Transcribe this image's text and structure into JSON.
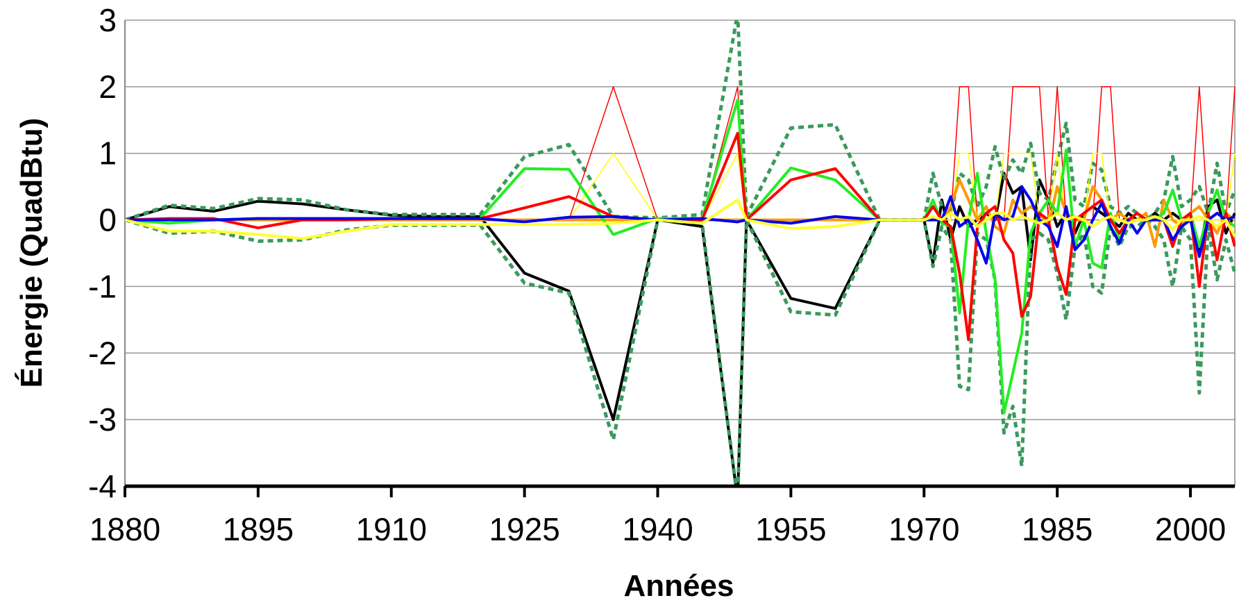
{
  "chart_data": {
    "type": "line",
    "x_label": "Années",
    "y_label": "Énergie (QuadBtu)",
    "x": [
      1880,
      1885,
      1890,
      1895,
      1900,
      1905,
      1910,
      1915,
      1920,
      1925,
      1930,
      1935,
      1940,
      1945,
      1949,
      1950,
      1955,
      1960,
      1965,
      1970,
      1971,
      1972,
      1973,
      1974,
      1975,
      1976,
      1977,
      1978,
      1979,
      1980,
      1981,
      1982,
      1983,
      1984,
      1985,
      1986,
      1987,
      1988,
      1989,
      1990,
      1991,
      1992,
      1993,
      1994,
      1995,
      1996,
      1997,
      1998,
      1999,
      2000,
      2001,
      2002,
      2003,
      2004,
      2005
    ],
    "xlim": [
      1880,
      2005
    ],
    "xticks": [
      1880,
      1895,
      1910,
      1925,
      1940,
      1955,
      1970,
      1985,
      2000
    ],
    "ylim": [
      -4,
      3
    ],
    "yticks": [
      -4,
      -3,
      -2,
      -1,
      0,
      1,
      2,
      3
    ],
    "grid": true,
    "series": [
      {
        "color": "#000000",
        "width": 4,
        "values": [
          0,
          0.2,
          0.13,
          0.28,
          0.24,
          0.15,
          0.07,
          0.05,
          0.05,
          -0.8,
          -1.07,
          -3.0,
          0,
          -0.1,
          -4.2,
          0,
          -1.18,
          -1.33,
          0,
          0,
          -0.65,
          0.3,
          -0.3,
          0.2,
          -0.1,
          0,
          0.1,
          0,
          0.7,
          0.4,
          0.5,
          -0.6,
          0.6,
          0.3,
          -0.1,
          0.1,
          -0.2,
          0.1,
          0.2,
          0.1,
          0,
          -0.1,
          0.1,
          0,
          0,
          0.1,
          0,
          0.1,
          0,
          0.1,
          -0.5,
          0.2,
          0.3,
          -0.2,
          0.1
        ]
      },
      {
        "color": "#3a9a5c",
        "width": 5,
        "dash": "dotted",
        "values": [
          0,
          0.22,
          0.17,
          0.32,
          0.3,
          0.15,
          0.08,
          0.08,
          0.08,
          0.95,
          1.13,
          0.05,
          0.03,
          0.08,
          3.1,
          0.05,
          1.38,
          1.43,
          0,
          0,
          0.7,
          0.2,
          0.1,
          0.7,
          0.6,
          0.2,
          0.5,
          1.1,
          0.6,
          0.9,
          0.7,
          1.15,
          0.4,
          0.3,
          0.9,
          1.45,
          0.3,
          0.2,
          0.85,
          0.75,
          0.2,
          0.1,
          0.2,
          0.1,
          0,
          0.1,
          0.3,
          0.95,
          0.2,
          0.3,
          0.5,
          0.1,
          0.85,
          0.1,
          0.45
        ]
      },
      {
        "color": "#3a9a5c",
        "width": 5,
        "dash": "dotted",
        "values": [
          0,
          -0.2,
          -0.17,
          -0.32,
          -0.3,
          -0.15,
          -0.08,
          -0.08,
          -0.08,
          -0.95,
          -1.1,
          -3.3,
          0,
          -0.05,
          -4.2,
          0,
          -1.38,
          -1.43,
          0,
          0,
          -0.7,
          -0.1,
          -0.3,
          -2.5,
          -2.55,
          -0.2,
          -0.3,
          -0.9,
          -3.2,
          -2.8,
          -3.7,
          -0.3,
          -0.2,
          -0.3,
          -0.8,
          -1.5,
          -0.4,
          -0.2,
          -1.0,
          -1.1,
          -0.1,
          -0.4,
          -0.1,
          -0.1,
          0,
          -0.1,
          -0.3,
          -1.0,
          -0.1,
          -0.3,
          -2.6,
          -0.1,
          -0.9,
          -0.3,
          -0.8
        ]
      },
      {
        "color": "#ff0000",
        "width": 1.5,
        "values": [
          0,
          0,
          0,
          0,
          0,
          0,
          0,
          0,
          0,
          0,
          0,
          2,
          0,
          0,
          2,
          0,
          0,
          0,
          0,
          0,
          0,
          0,
          0,
          2,
          2,
          0,
          0,
          0,
          0,
          2,
          2,
          2,
          2,
          0,
          2,
          0,
          0,
          0,
          0,
          2,
          2,
          0,
          0,
          0,
          0,
          0,
          0,
          0,
          0,
          0,
          2,
          0,
          0,
          0,
          2
        ]
      },
      {
        "color": "#ffff00",
        "width": 1.5,
        "values": [
          0,
          0,
          0,
          0,
          0,
          0,
          0,
          0,
          0,
          0,
          0,
          1,
          0,
          0,
          1,
          0,
          0,
          0,
          0,
          0,
          0,
          0,
          0,
          1,
          1,
          0,
          0,
          0,
          1,
          1,
          1,
          1,
          0,
          0,
          1,
          0,
          0,
          0,
          1,
          1,
          0,
          0,
          0,
          0,
          0,
          0,
          0,
          0,
          0,
          0,
          0,
          0,
          0,
          0,
          1
        ]
      },
      {
        "color": "#ff9900",
        "width": 4,
        "values": [
          0,
          0,
          0,
          0,
          0,
          0,
          0,
          0,
          0,
          0,
          0,
          0,
          0,
          0,
          0,
          0,
          0,
          0,
          0,
          0,
          0,
          0,
          0.2,
          0.6,
          0.3,
          0,
          0.2,
          -0.1,
          -0.2,
          0.3,
          0.1,
          0.2,
          0.1,
          -0.1,
          0.5,
          0.1,
          0,
          0,
          0.5,
          0.3,
          0,
          0.1,
          0,
          0,
          0.1,
          -0.4,
          0.3,
          0,
          -0.1,
          0.1,
          0.2,
          0,
          -0.2,
          0.1,
          0
        ]
      },
      {
        "color": "#22ee22",
        "width": 4,
        "values": [
          0,
          -0.05,
          0,
          0.02,
          0.02,
          0.02,
          0.02,
          0.02,
          0.02,
          0.77,
          0.76,
          -0.22,
          0.02,
          0.02,
          1.8,
          0,
          0.78,
          0.6,
          0,
          0,
          0.3,
          -0.05,
          -0.1,
          -1.4,
          0,
          0.7,
          -0.2,
          -0.9,
          -2.9,
          -2.3,
          -1.7,
          -0.2,
          0.1,
          0.3,
          0.1,
          1.05,
          -0.4,
          0,
          -0.65,
          -0.72,
          0.1,
          -0.3,
          0,
          0.1,
          0,
          0,
          0.1,
          0.45,
          0,
          0.1,
          -0.4,
          0.1,
          0.45,
          0,
          -0.1
        ]
      },
      {
        "color": "#ff0000",
        "width": 4,
        "values": [
          0,
          0.02,
          0.02,
          -0.12,
          0,
          0,
          0.02,
          0.02,
          0.02,
          0.18,
          0.35,
          0.05,
          0,
          0,
          1.3,
          0,
          0.6,
          0.77,
          0,
          0,
          0.2,
          0,
          -0.1,
          -0.8,
          -1.8,
          -0.1,
          0.1,
          0.2,
          -0.3,
          -0.5,
          -1.45,
          -1.15,
          0.1,
          0,
          -0.7,
          -1.12,
          0,
          0.1,
          0.2,
          0.3,
          0,
          -0.2,
          0,
          0.1,
          0,
          0,
          0,
          -0.4,
          0,
          0.1,
          -1.0,
          0.1,
          -0.6,
          0.1,
          -0.4
        ]
      },
      {
        "color": "#0000ee",
        "width": 4,
        "values": [
          0,
          0,
          0,
          0.02,
          0.02,
          0.02,
          0.02,
          0.02,
          0.02,
          -0.03,
          0.04,
          0.05,
          0,
          0.02,
          -0.03,
          0,
          -0.05,
          0.05,
          0,
          0,
          0,
          0,
          0.35,
          -0.1,
          0,
          -0.3,
          -0.65,
          0.1,
          0,
          0.05,
          0.5,
          0.3,
          0,
          -0.1,
          -0.4,
          0.2,
          -0.45,
          -0.3,
          0,
          0.25,
          -0.1,
          -0.35,
          0,
          -0.2,
          0,
          0,
          0,
          -0.3,
          -0.1,
          0,
          -0.55,
          0,
          0.1,
          0,
          0.05
        ]
      },
      {
        "color": "#ffff33",
        "width": 4,
        "values": [
          0,
          -0.17,
          -0.17,
          -0.22,
          -0.28,
          -0.17,
          -0.07,
          -0.07,
          -0.07,
          -0.07,
          -0.07,
          -0.05,
          0,
          -0.05,
          0.3,
          0,
          -0.13,
          -0.1,
          0,
          0,
          0.05,
          0,
          0.1,
          0,
          0.05,
          -0.1,
          0,
          0.1,
          0.1,
          0,
          0.05,
          0,
          -0.05,
          0,
          0.1,
          0,
          0.05,
          0,
          -0.1,
          0,
          0.05,
          0,
          -0.05,
          0,
          0,
          0.05,
          0,
          -0.15,
          0,
          0,
          0.05,
          0,
          -0.1,
          0,
          -0.25
        ]
      }
    ]
  }
}
